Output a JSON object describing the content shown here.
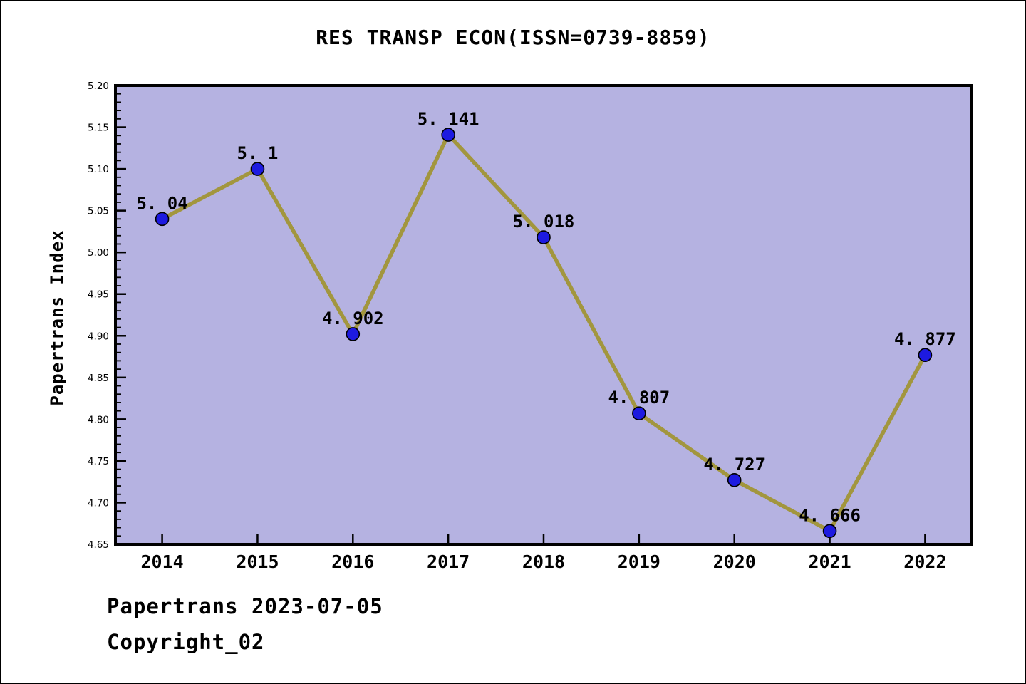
{
  "window": {
    "background": "#ffffff",
    "border_color": "#000000"
  },
  "header": {
    "title": "RES TRANSP ECON(ISSN=0739-8859)"
  },
  "footer": {
    "line1": "Papertrans 2023-07-05",
    "line2": "Copyright_02"
  },
  "chart_data": {
    "type": "line",
    "title": "RES TRANSP ECON(ISSN=0739-8859)",
    "xlabel": "",
    "ylabel": "Papertrans Index",
    "x": [
      2014,
      2015,
      2016,
      2017,
      2018,
      2019,
      2020,
      2021,
      2022
    ],
    "x_tick_labels": [
      "2014",
      "2015",
      "2016",
      "2017",
      "2018",
      "2019",
      "2020",
      "2021",
      "2022"
    ],
    "values": [
      5.04,
      5.1,
      4.902,
      5.141,
      5.018,
      4.807,
      4.727,
      4.666,
      4.877
    ],
    "point_labels": [
      "5. 04",
      "5. 1",
      "4. 902",
      "5. 141",
      "5. 018",
      "4. 807",
      "4. 727",
      "4. 666",
      "4. 877"
    ],
    "series_name": "Papertrans Index",
    "ylim": [
      4.65,
      5.2
    ],
    "xlim": [
      2013.51,
      2022.49
    ],
    "y_tick_values": [
      4.65,
      4.7,
      4.75,
      4.8,
      4.85,
      4.9,
      4.95,
      5.0,
      5.05,
      5.1,
      5.15,
      5.2
    ],
    "y_tick_labels": [
      "4.65",
      "4.70",
      "4.75",
      "4.80",
      "4.85",
      "4.90",
      "4.95",
      "5.00",
      "5.05",
      "5.10",
      "5.15",
      "5.20"
    ],
    "y_minor_tick_step": 0.01,
    "grid": false,
    "legend": "none",
    "plot_bg_color": "#b5b2e1",
    "line_color": "#a2963e",
    "marker_color": "#1d1ae0",
    "marker_edge_color": "#000000",
    "axis_color": "#000000"
  }
}
